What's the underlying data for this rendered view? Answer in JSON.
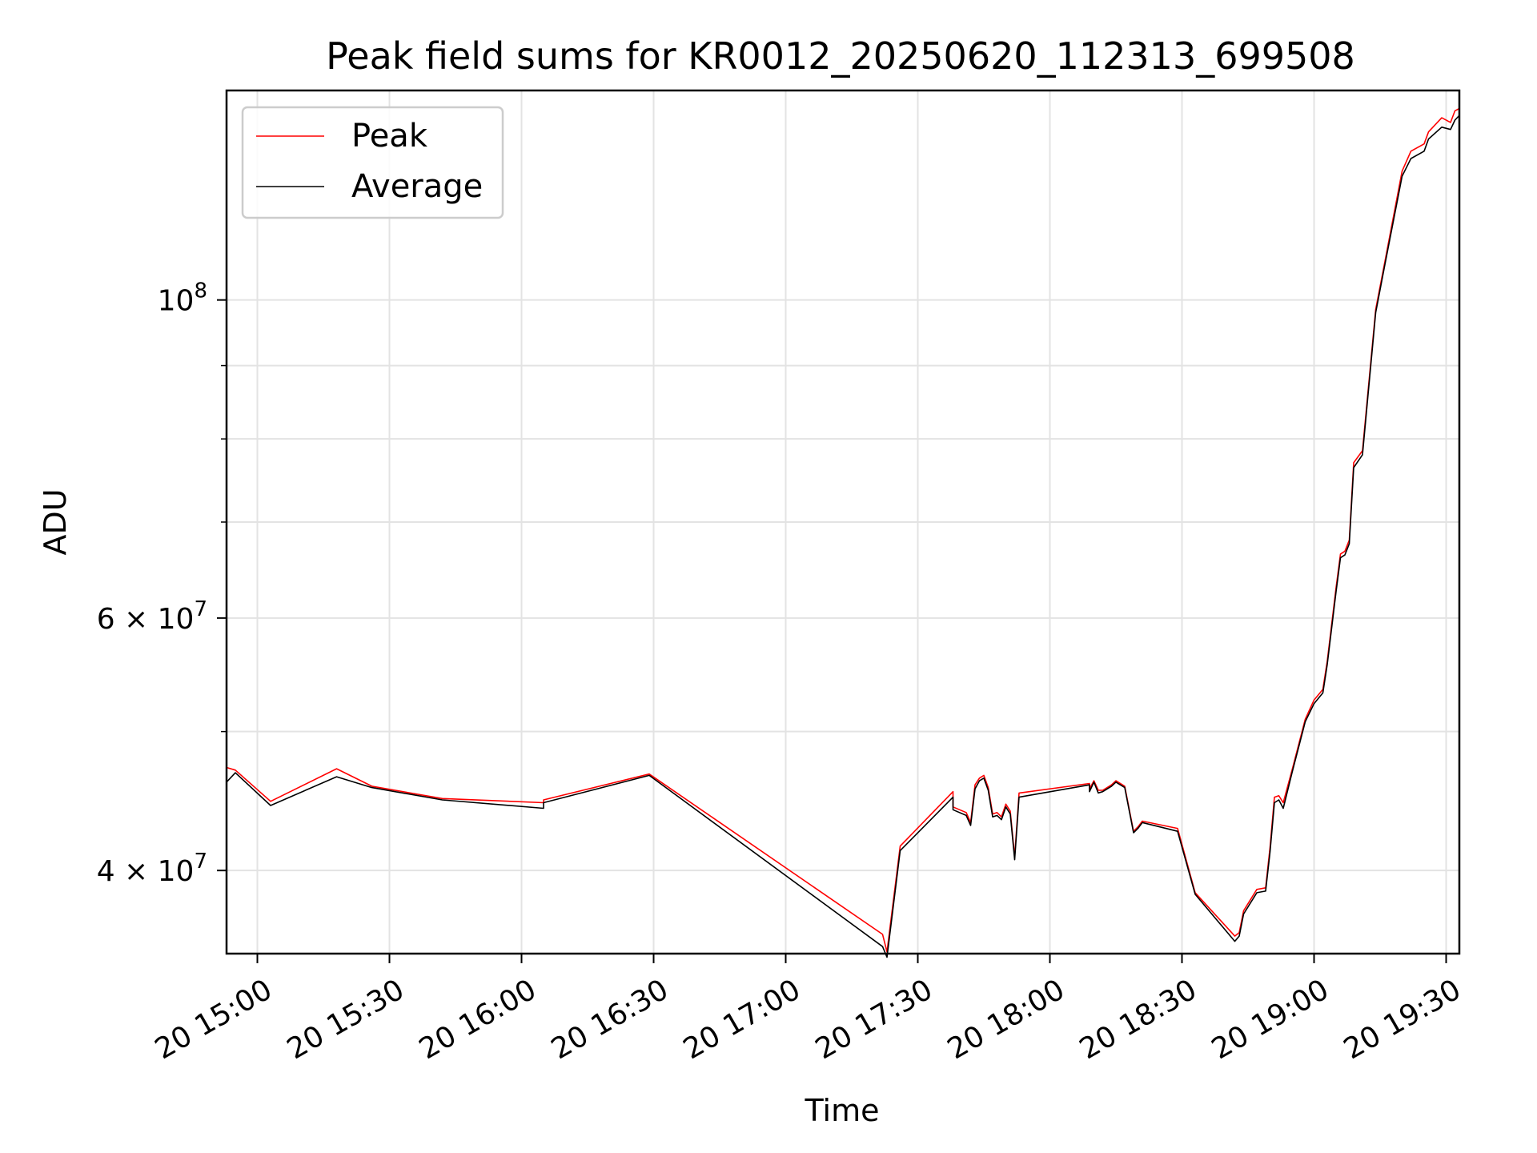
{
  "chart_data": {
    "type": "line",
    "title": "Peak field sums for KR0012_20250620_112313_699508",
    "xlabel": "Time",
    "ylabel": "ADU",
    "yscale": "log",
    "ylim": [
      35000000,
      140000000
    ],
    "xlim": [
      "2025-06-20 14:53",
      "2025-06-20 19:33"
    ],
    "x_ticks": [
      {
        "x": "2025-06-20 15:00",
        "label": "20 15:00"
      },
      {
        "x": "2025-06-20 15:30",
        "label": "20 15:30"
      },
      {
        "x": "2025-06-20 16:00",
        "label": "20 16:00"
      },
      {
        "x": "2025-06-20 16:30",
        "label": "20 16:30"
      },
      {
        "x": "2025-06-20 17:00",
        "label": "20 17:00"
      },
      {
        "x": "2025-06-20 17:30",
        "label": "20 17:30"
      },
      {
        "x": "2025-06-20 18:00",
        "label": "20 18:00"
      },
      {
        "x": "2025-06-20 18:30",
        "label": "20 18:30"
      },
      {
        "x": "2025-06-20 19:00",
        "label": "20 19:00"
      },
      {
        "x": "2025-06-20 19:30",
        "label": "20 19:30"
      }
    ],
    "y_ticks_major": [
      {
        "y": 40000000,
        "label": "4 × 10",
        "exp": "7"
      },
      {
        "y": 60000000,
        "label": "6 × 10",
        "exp": "7"
      },
      {
        "y": 100000000,
        "label": "10",
        "exp": "8"
      }
    ],
    "y_ticks_minor": [
      50000000,
      70000000,
      80000000,
      90000000
    ],
    "grid": true,
    "legend_position": "top-left",
    "series": [
      {
        "name": "Peak",
        "color": "#ff0000",
        "points": [
          [
            "2025-06-20 14:53",
            47200000
          ],
          [
            "2025-06-20 14:55",
            47000000
          ],
          [
            "2025-06-20 15:03",
            44700000
          ],
          [
            "2025-06-20 15:18",
            47100000
          ],
          [
            "2025-06-20 15:26",
            45800000
          ],
          [
            "2025-06-20 15:42",
            44900000
          ],
          [
            "2025-06-20 16:05",
            44600000
          ],
          [
            "2025-06-20 16:05",
            44800000
          ],
          [
            "2025-06-20 16:29",
            46700000
          ],
          [
            "2025-06-20 17:22",
            36100000
          ],
          [
            "2025-06-20 17:23",
            35100000
          ],
          [
            "2025-06-20 17:26",
            41600000
          ],
          [
            "2025-06-20 17:38",
            45400000
          ],
          [
            "2025-06-20 17:38",
            44300000
          ],
          [
            "2025-06-20 17:41",
            43900000
          ],
          [
            "2025-06-20 17:42",
            43200000
          ],
          [
            "2025-06-20 17:43",
            45900000
          ],
          [
            "2025-06-20 17:44",
            46400000
          ],
          [
            "2025-06-20 17:45",
            46600000
          ],
          [
            "2025-06-20 17:46",
            45700000
          ],
          [
            "2025-06-20 17:47",
            43800000
          ],
          [
            "2025-06-20 17:48",
            43900000
          ],
          [
            "2025-06-20 17:49",
            43600000
          ],
          [
            "2025-06-20 17:50",
            44500000
          ],
          [
            "2025-06-20 17:51",
            44000000
          ],
          [
            "2025-06-20 17:52",
            40900000
          ],
          [
            "2025-06-20 17:53",
            45300000
          ],
          [
            "2025-06-20 18:09",
            46000000
          ],
          [
            "2025-06-20 18:09",
            45600000
          ],
          [
            "2025-06-20 18:10",
            46200000
          ],
          [
            "2025-06-20 18:11",
            45500000
          ],
          [
            "2025-06-20 18:12",
            45500000
          ],
          [
            "2025-06-20 18:14",
            45900000
          ],
          [
            "2025-06-20 18:15",
            46200000
          ],
          [
            "2025-06-20 18:17",
            45800000
          ],
          [
            "2025-06-20 18:19",
            42600000
          ],
          [
            "2025-06-20 18:20",
            42900000
          ],
          [
            "2025-06-20 18:21",
            43300000
          ],
          [
            "2025-06-20 18:29",
            42800000
          ],
          [
            "2025-06-20 18:33",
            38600000
          ],
          [
            "2025-06-20 18:42",
            36000000
          ],
          [
            "2025-06-20 18:43",
            36200000
          ],
          [
            "2025-06-20 18:44",
            37500000
          ],
          [
            "2025-06-20 18:47",
            38800000
          ],
          [
            "2025-06-20 18:49",
            38900000
          ],
          [
            "2025-06-20 18:50",
            41500000
          ],
          [
            "2025-06-20 18:51",
            45000000
          ],
          [
            "2025-06-20 18:52",
            45100000
          ],
          [
            "2025-06-20 18:53",
            44600000
          ],
          [
            "2025-06-20 18:55",
            47000000
          ],
          [
            "2025-06-20 18:58",
            51000000
          ],
          [
            "2025-06-20 19:00",
            52600000
          ],
          [
            "2025-06-20 19:02",
            53500000
          ],
          [
            "2025-06-20 19:03",
            56000000
          ],
          [
            "2025-06-20 19:05",
            63000000
          ],
          [
            "2025-06-20 19:06",
            66500000
          ],
          [
            "2025-06-20 19:07",
            66800000
          ],
          [
            "2025-06-20 19:08",
            68000000
          ],
          [
            "2025-06-20 19:09",
            77000000
          ],
          [
            "2025-06-20 19:11",
            78500000
          ],
          [
            "2025-06-20 19:14",
            98500000
          ],
          [
            "2025-06-20 19:16",
            106000000
          ],
          [
            "2025-06-20 19:20",
            123000000
          ],
          [
            "2025-06-20 19:22",
            127000000
          ],
          [
            "2025-06-20 19:25",
            128500000
          ],
          [
            "2025-06-20 19:26",
            131000000
          ],
          [
            "2025-06-20 19:29",
            134000000
          ],
          [
            "2025-06-20 19:31",
            133000000
          ],
          [
            "2025-06-20 19:32",
            135500000
          ],
          [
            "2025-06-20 19:33",
            136000000
          ]
        ]
      },
      {
        "name": "Average",
        "color": "#000000",
        "points": [
          [
            "2025-06-20 14:53",
            46100000
          ],
          [
            "2025-06-20 14:55",
            46800000
          ],
          [
            "2025-06-20 15:03",
            44400000
          ],
          [
            "2025-06-20 15:18",
            46500000
          ],
          [
            "2025-06-20 15:26",
            45700000
          ],
          [
            "2025-06-20 15:42",
            44800000
          ],
          [
            "2025-06-20 16:05",
            44200000
          ],
          [
            "2025-06-20 16:05",
            44600000
          ],
          [
            "2025-06-20 16:29",
            46600000
          ],
          [
            "2025-06-20 17:22",
            35400000
          ],
          [
            "2025-06-20 17:23",
            34800000
          ],
          [
            "2025-06-20 17:26",
            41300000
          ],
          [
            "2025-06-20 17:38",
            45000000
          ],
          [
            "2025-06-20 17:38",
            44100000
          ],
          [
            "2025-06-20 17:41",
            43700000
          ],
          [
            "2025-06-20 17:42",
            43000000
          ],
          [
            "2025-06-20 17:43",
            45600000
          ],
          [
            "2025-06-20 17:44",
            46200000
          ],
          [
            "2025-06-20 17:45",
            46400000
          ],
          [
            "2025-06-20 17:46",
            45500000
          ],
          [
            "2025-06-20 17:47",
            43600000
          ],
          [
            "2025-06-20 17:48",
            43700000
          ],
          [
            "2025-06-20 17:49",
            43400000
          ],
          [
            "2025-06-20 17:50",
            44300000
          ],
          [
            "2025-06-20 17:51",
            43800000
          ],
          [
            "2025-06-20 17:52",
            40700000
          ],
          [
            "2025-06-20 17:53",
            45000000
          ],
          [
            "2025-06-20 18:09",
            45900000
          ],
          [
            "2025-06-20 18:09",
            45400000
          ],
          [
            "2025-06-20 18:10",
            46100000
          ],
          [
            "2025-06-20 18:11",
            45300000
          ],
          [
            "2025-06-20 18:12",
            45400000
          ],
          [
            "2025-06-20 18:14",
            45800000
          ],
          [
            "2025-06-20 18:15",
            46100000
          ],
          [
            "2025-06-20 18:17",
            45700000
          ],
          [
            "2025-06-20 18:19",
            42500000
          ],
          [
            "2025-06-20 18:20",
            42800000
          ],
          [
            "2025-06-20 18:21",
            43200000
          ],
          [
            "2025-06-20 18:29",
            42600000
          ],
          [
            "2025-06-20 18:33",
            38500000
          ],
          [
            "2025-06-20 18:42",
            35700000
          ],
          [
            "2025-06-20 18:43",
            36000000
          ],
          [
            "2025-06-20 18:44",
            37300000
          ],
          [
            "2025-06-20 18:47",
            38600000
          ],
          [
            "2025-06-20 18:49",
            38700000
          ],
          [
            "2025-06-20 18:50",
            41200000
          ],
          [
            "2025-06-20 18:51",
            44600000
          ],
          [
            "2025-06-20 18:52",
            44800000
          ],
          [
            "2025-06-20 18:53",
            44200000
          ],
          [
            "2025-06-20 18:55",
            46800000
          ],
          [
            "2025-06-20 18:58",
            50800000
          ],
          [
            "2025-06-20 19:00",
            52300000
          ],
          [
            "2025-06-20 19:02",
            53200000
          ],
          [
            "2025-06-20 19:03",
            55700000
          ],
          [
            "2025-06-20 19:05",
            62600000
          ],
          [
            "2025-06-20 19:06",
            66100000
          ],
          [
            "2025-06-20 19:07",
            66400000
          ],
          [
            "2025-06-20 19:08",
            67600000
          ],
          [
            "2025-06-20 19:09",
            76400000
          ],
          [
            "2025-06-20 19:11",
            78000000
          ],
          [
            "2025-06-20 19:14",
            98000000
          ],
          [
            "2025-06-20 19:16",
            105500000
          ],
          [
            "2025-06-20 19:20",
            122000000
          ],
          [
            "2025-06-20 19:22",
            125500000
          ],
          [
            "2025-06-20 19:25",
            127000000
          ],
          [
            "2025-06-20 19:26",
            129500000
          ],
          [
            "2025-06-20 19:29",
            132000000
          ],
          [
            "2025-06-20 19:31",
            131500000
          ],
          [
            "2025-06-20 19:32",
            133500000
          ],
          [
            "2025-06-20 19:33",
            134500000
          ]
        ]
      }
    ]
  }
}
